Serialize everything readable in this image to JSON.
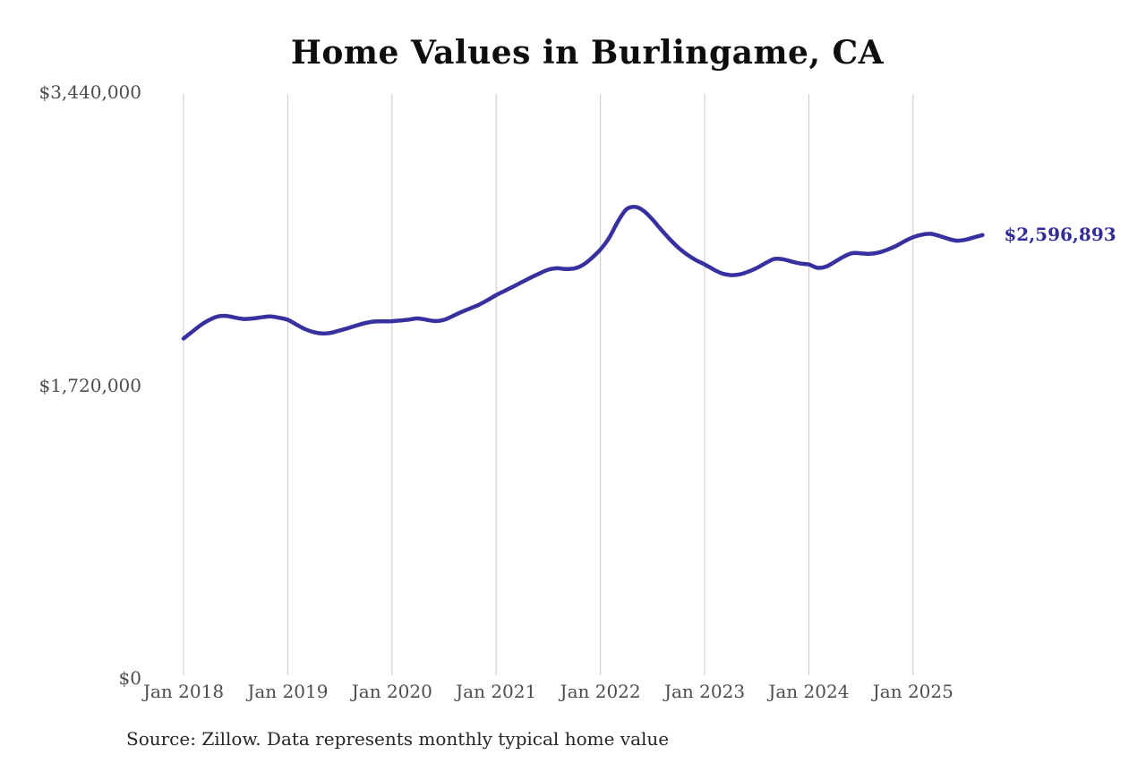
{
  "title": "Home Values in Burlingame, CA",
  "source_note": "Source: Zillow. Data represents monthly typical home value",
  "current_value_label": "$2,596,893",
  "colors": {
    "background": "#ffffff",
    "line": "#3731a0",
    "value_label": "#322c98",
    "grid": "#c8c8c8",
    "axis_text": "#4d4d4d",
    "title_text": "#0d0d0d",
    "source_text": "#262626"
  },
  "chart_data": {
    "type": "line",
    "title": "Home Values in Burlingame, CA",
    "x_start": "2018-01",
    "x_frequency": "monthly",
    "x_tick_labels": [
      "Jan 2018",
      "Jan 2019",
      "Jan 2020",
      "Jan 2021",
      "Jan 2022",
      "Jan 2023",
      "Jan 2024",
      "Jan 2025"
    ],
    "y_tick_labels": [
      "$0",
      "$1,720,000",
      "$3,440,000"
    ],
    "y_ticks": [
      0,
      1720000,
      3440000
    ],
    "ylim": [
      0,
      3440000
    ],
    "grid": "vertical-only",
    "legend": "none",
    "values": [
      1990000,
      2030000,
      2070000,
      2100000,
      2120000,
      2122000,
      2112000,
      2105000,
      2108000,
      2115000,
      2120000,
      2112000,
      2100000,
      2072000,
      2045000,
      2028000,
      2020000,
      2024000,
      2038000,
      2052000,
      2068000,
      2082000,
      2090000,
      2091000,
      2092000,
      2096000,
      2102000,
      2108000,
      2100000,
      2093000,
      2100000,
      2122000,
      2146000,
      2167000,
      2188000,
      2215000,
      2245000,
      2270000,
      2296000,
      2322000,
      2348000,
      2372000,
      2394000,
      2402000,
      2398000,
      2401000,
      2422000,
      2462000,
      2512000,
      2580000,
      2675000,
      2748000,
      2762000,
      2738000,
      2688000,
      2628000,
      2572000,
      2522000,
      2482000,
      2450000,
      2425000,
      2396000,
      2372000,
      2362000,
      2366000,
      2382000,
      2404000,
      2432000,
      2456000,
      2455000,
      2442000,
      2430000,
      2424000,
      2405000,
      2412000,
      2440000,
      2470000,
      2491000,
      2490000,
      2487000,
      2494000,
      2510000,
      2532000,
      2560000,
      2584000,
      2599000,
      2604000,
      2592000,
      2576000,
      2564000,
      2569000,
      2583000,
      2596893
    ],
    "end_value": 2596893,
    "end_value_label": "$2,596,893"
  }
}
